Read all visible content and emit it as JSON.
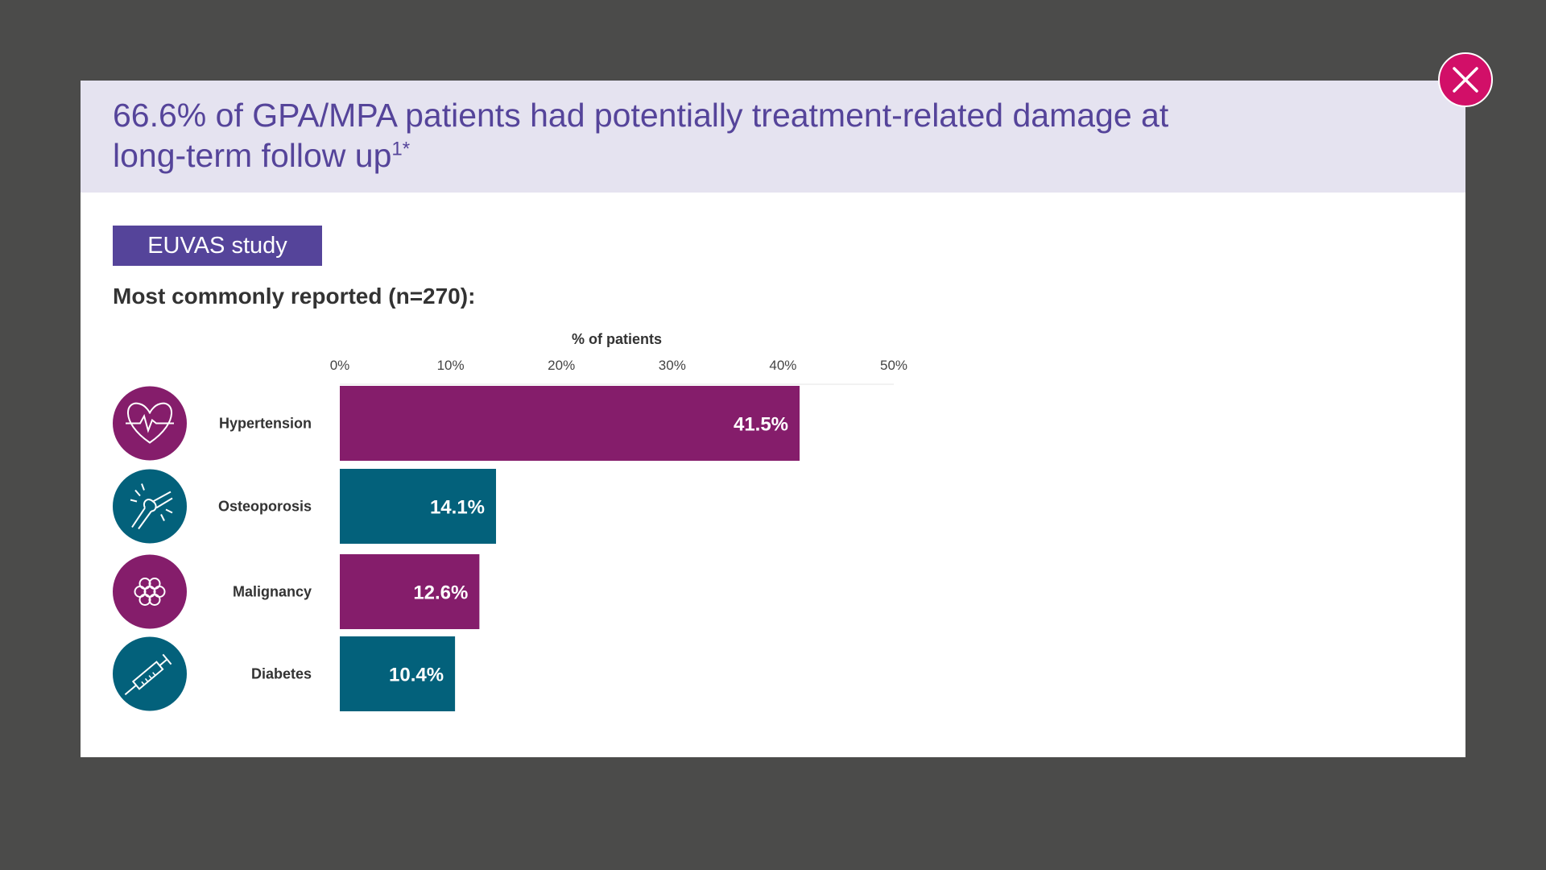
{
  "modal": {
    "title_main": "66.6% of GPA/MPA patients had potentially treatment-related damage at long-term follow up",
    "title_sup": "1*",
    "badge": "EUVAS study",
    "subtitle": "Most commonly reported (n=270):"
  },
  "close": {
    "icon": "close-icon"
  },
  "colors": {
    "background": "#4b4b4a",
    "header": "#e5e3f0",
    "title": "#55449a",
    "badge": "#55449a",
    "close": "#d20f68",
    "purple": "#851d6b",
    "teal": "#03617b"
  },
  "chart_data": {
    "type": "bar",
    "orientation": "horizontal",
    "xlabel": "% of patients",
    "xlim": [
      0,
      50
    ],
    "ticks": [
      0,
      10,
      20,
      30,
      40,
      50
    ],
    "tick_labels": [
      "0%",
      "10%",
      "20%",
      "30%",
      "40%",
      "50%"
    ],
    "categories": [
      "Hypertension",
      "Osteoporosis",
      "Malignancy",
      "Diabetes"
    ],
    "values": [
      41.5,
      14.1,
      12.6,
      10.4
    ],
    "value_labels": [
      "41.5%",
      "14.1%",
      "12.6%",
      "10.4%"
    ],
    "icons": [
      "heart-pulse-icon",
      "joint-pain-icon",
      "cells-icon",
      "syringe-icon"
    ],
    "bar_colors": [
      "#851d6b",
      "#03617b",
      "#851d6b",
      "#03617b"
    ]
  }
}
